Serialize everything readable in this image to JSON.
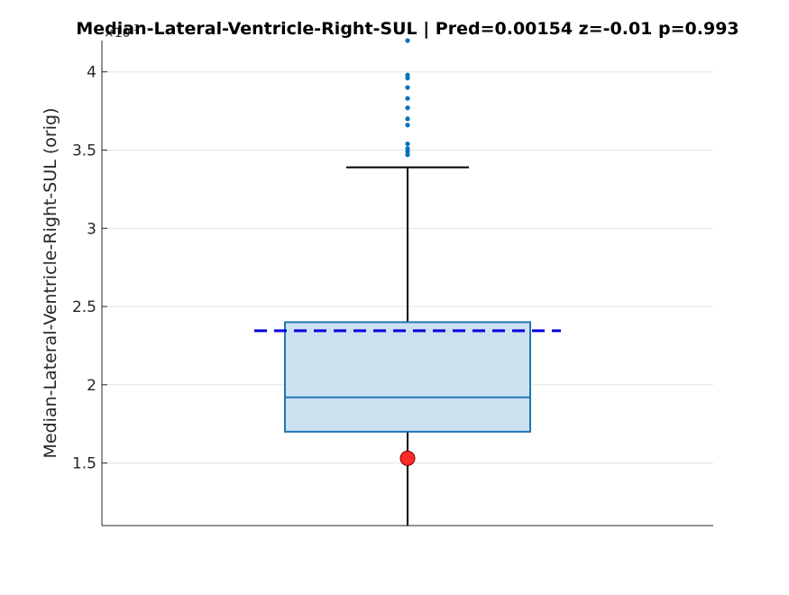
{
  "chart_data": {
    "type": "box",
    "title": "Median-Lateral-Ventricle-Right-SUL  |  Pred=0.00154  z=-0.01  p=0.993",
    "xlabel": "",
    "ylabel": "Median-Lateral-Ventricle-Right-SUL (orig)",
    "axis_exponent_base": "×10",
    "axis_exponent_power": "-3",
    "ylim": [
      1.1,
      4.2
    ],
    "yticks": [
      1.5,
      2,
      2.5,
      3,
      3.5,
      4
    ],
    "ytick_labels": [
      "1.5",
      "2",
      "2.5",
      "3",
      "3.5",
      "4"
    ],
    "grid": true,
    "box": {
      "q1": 1.7,
      "median": 1.92,
      "q3": 2.4,
      "whisker_low": 1.1,
      "whisker_high": 3.39,
      "fill_color": "#cce1f0",
      "edge_color": "#1f77b4"
    },
    "outliers": [
      3.47,
      3.49,
      3.51,
      3.54,
      3.66,
      3.7,
      3.77,
      3.83,
      3.9,
      3.96,
      3.98,
      4.2
    ],
    "outlier_color": "#0072bd",
    "reference_line": {
      "value": 2.345,
      "color": "#0000dd",
      "style": "dashed"
    },
    "subject_marker": {
      "value": 1.53,
      "color": "#ff2a2a"
    }
  }
}
